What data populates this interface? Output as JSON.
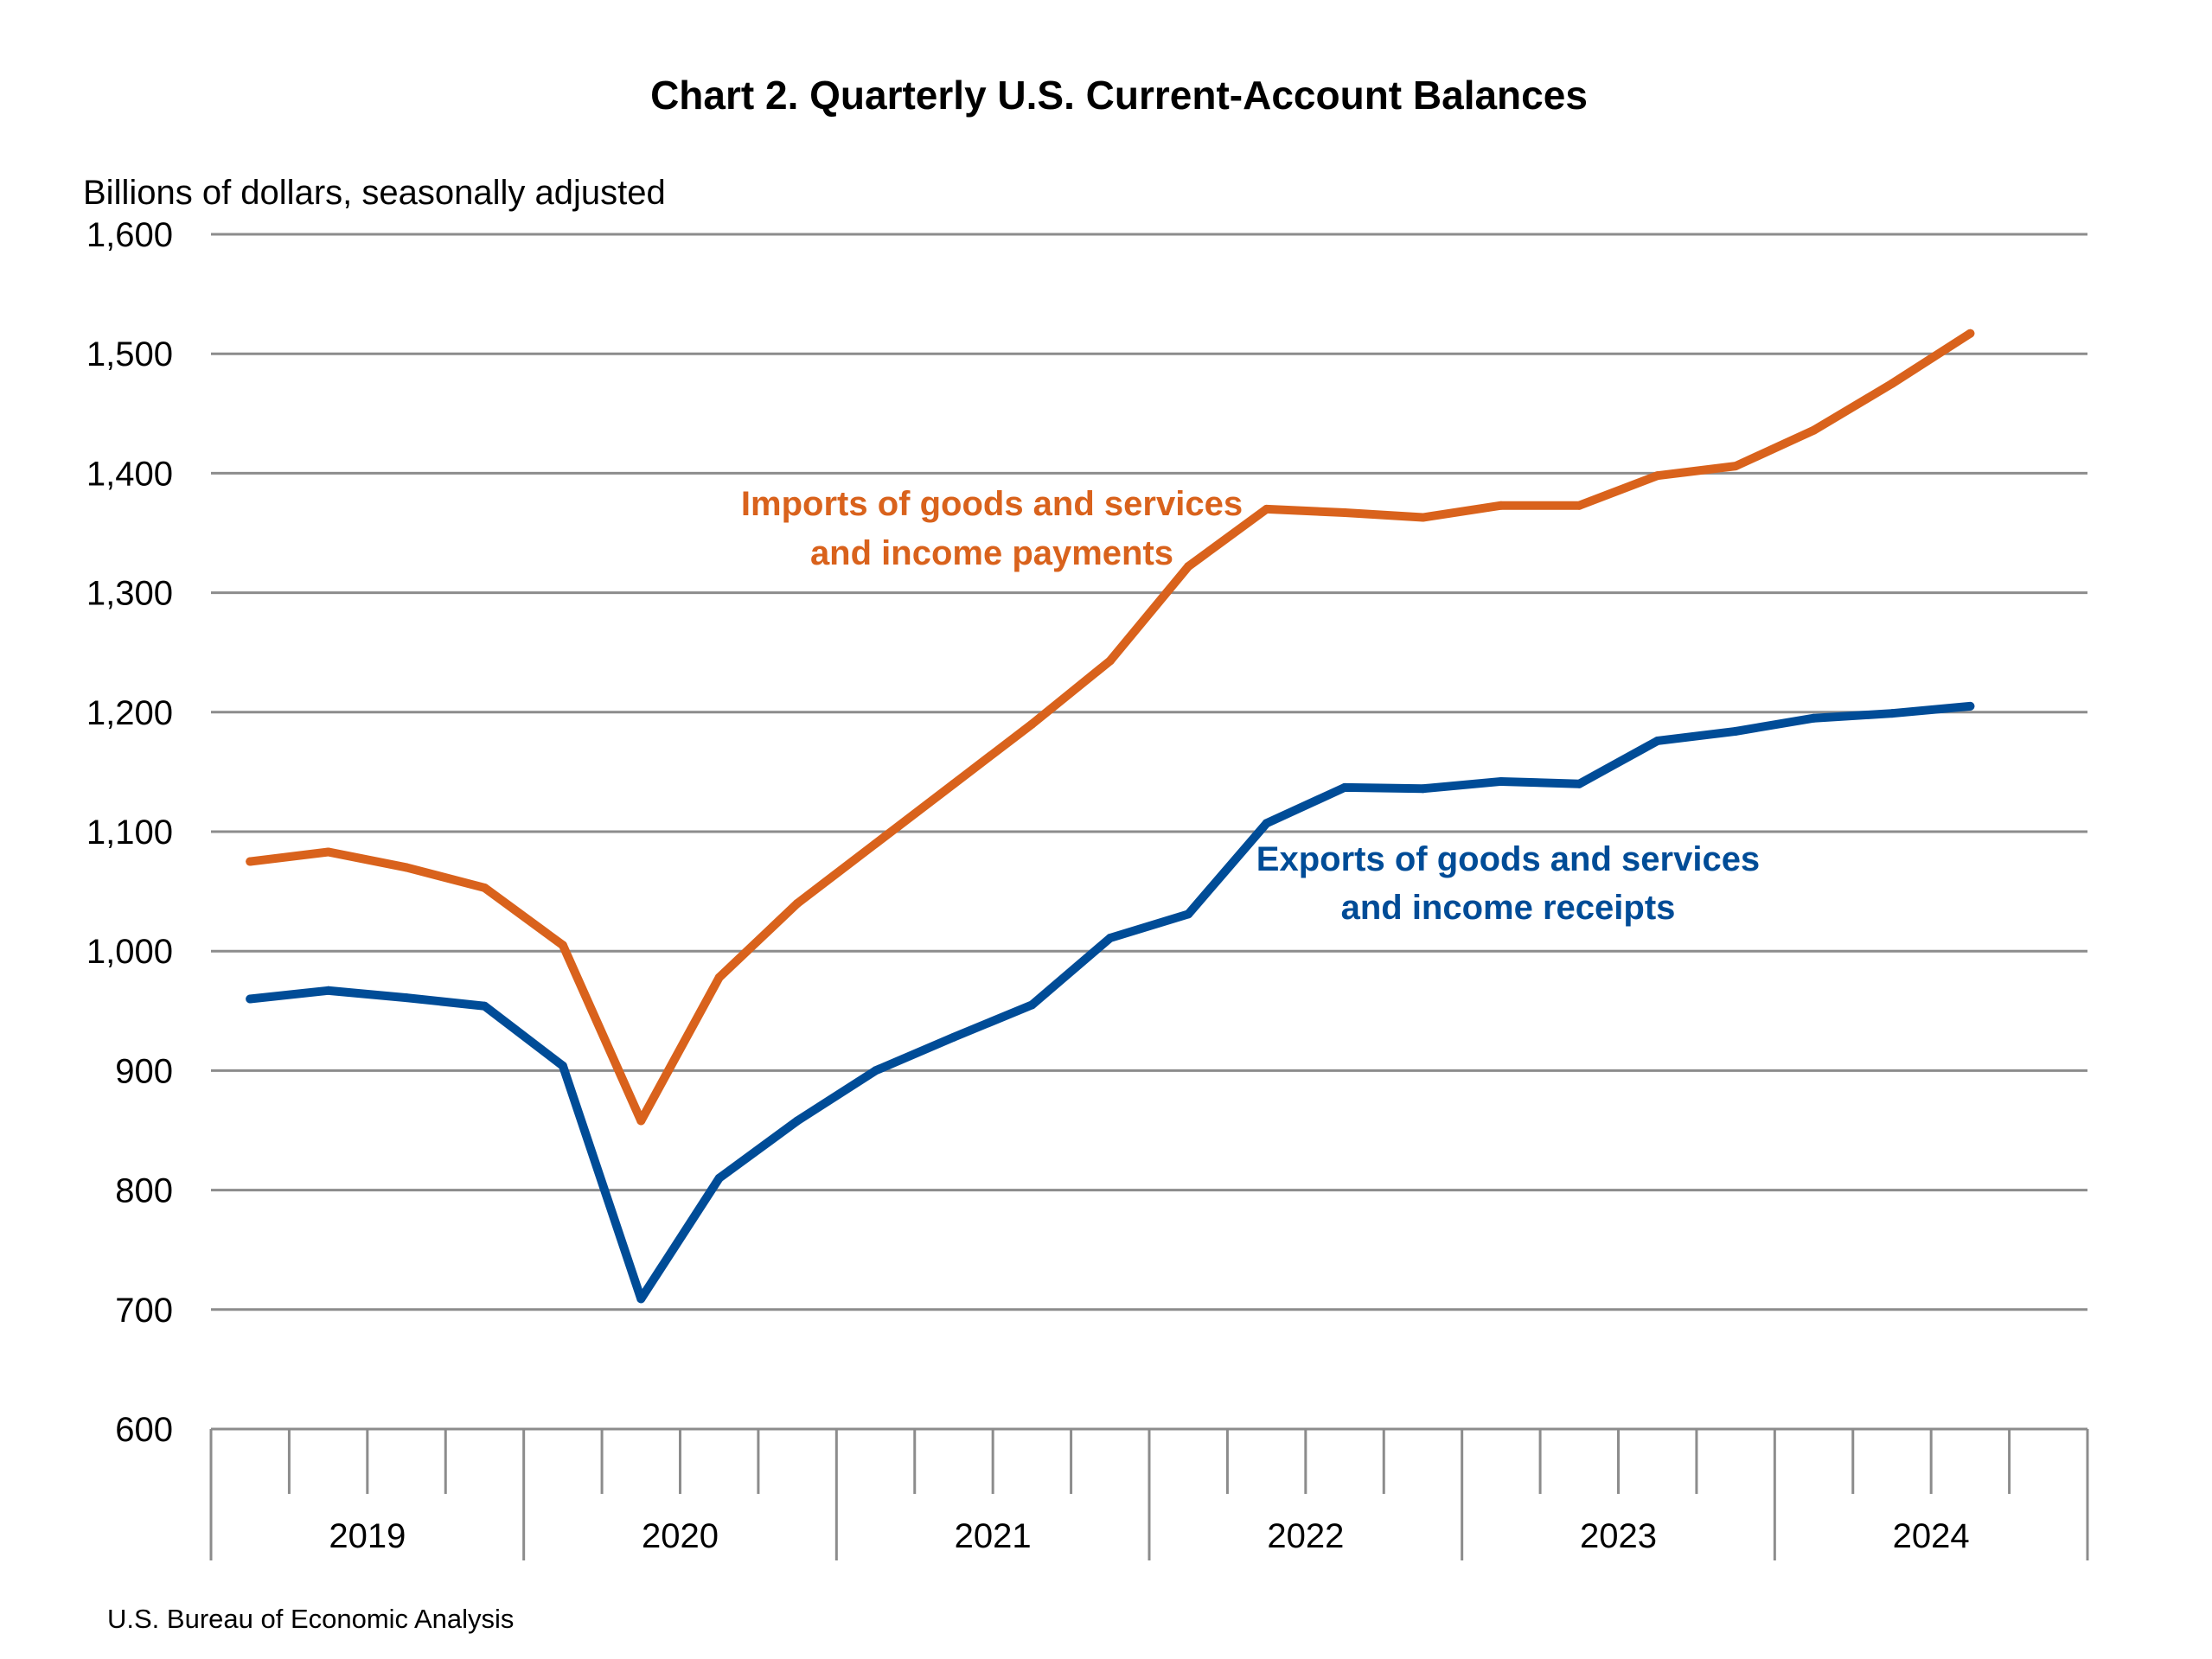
{
  "chart_data": {
    "type": "line",
    "title": "Chart 2. Quarterly U.S. Current-Account Balances",
    "ylabel": "Billions of dollars, seasonally adjusted",
    "xlabel": "",
    "ylim": [
      600,
      1600
    ],
    "yticks": [
      600,
      700,
      800,
      900,
      1000,
      1100,
      1200,
      1300,
      1400,
      1500,
      1600
    ],
    "ytick_labels": [
      "600",
      "700",
      "800",
      "900",
      "1,000",
      "1,100",
      "1,200",
      "1,300",
      "1,400",
      "1,500",
      "1,600"
    ],
    "x_years": [
      "2019",
      "2020",
      "2021",
      "2022",
      "2023",
      "2024"
    ],
    "quarters_per_year": 4,
    "x": [
      "2019Q1",
      "2019Q2",
      "2019Q3",
      "2019Q4",
      "2020Q1",
      "2020Q2",
      "2020Q3",
      "2020Q4",
      "2021Q1",
      "2021Q2",
      "2021Q3",
      "2021Q4",
      "2022Q1",
      "2022Q2",
      "2022Q3",
      "2022Q4",
      "2023Q1",
      "2023Q2",
      "2023Q3",
      "2023Q4",
      "2024Q1",
      "2024Q2",
      "2024Q3"
    ],
    "grid": true,
    "legend": "inline labels",
    "series": [
      {
        "name": "Imports of goods and services and income payments",
        "label_lines": [
          "Imports of goods and services",
          "and income payments"
        ],
        "color": "#D9621C",
        "values": [
          1075,
          1083,
          1070,
          1053,
          1005,
          858,
          978,
          1040,
          1090,
          1140,
          1190,
          1243,
          1322,
          1370,
          1367,
          1363,
          1373,
          1373,
          1398,
          1406,
          1436,
          1475,
          1517
        ]
      },
      {
        "name": "Exports of goods and services and income receipts",
        "label_lines": [
          "Exports of goods and services",
          "and income receipts"
        ],
        "color": "#004C97",
        "values": [
          960,
          967,
          961,
          954,
          904,
          709,
          810,
          858,
          900,
          928,
          955,
          1011,
          1031,
          1107,
          1137,
          1136,
          1142,
          1140,
          1176,
          1184,
          1195,
          1199,
          1205
        ]
      }
    ],
    "source": "U.S. Bureau of Economic Analysis"
  }
}
